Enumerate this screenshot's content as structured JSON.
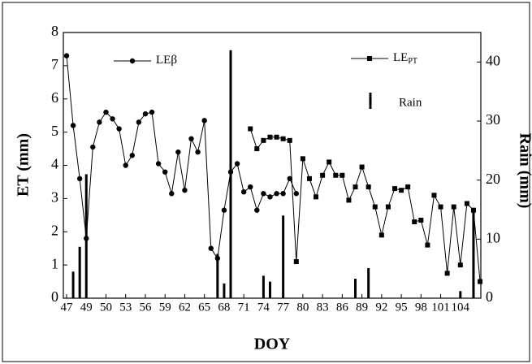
{
  "chart_data": {
    "type": "line",
    "xlabel": "DOY",
    "ylabel": "ET (mm)",
    "y2label": "Rain (mm)",
    "categories": [
      "47",
      null,
      null,
      "49",
      null,
      null,
      "50",
      null,
      null,
      "53",
      null,
      null,
      "56",
      null,
      null,
      "59",
      null,
      null,
      "62",
      null,
      null,
      "65",
      null,
      null,
      "68",
      null,
      null,
      "71",
      null,
      null,
      "74",
      null,
      null,
      "77",
      null,
      null,
      "80",
      null,
      null,
      "83",
      null,
      null,
      "86",
      null,
      null,
      "89",
      null,
      null,
      "92",
      null,
      null,
      "95",
      null,
      null,
      "98",
      null,
      null,
      "101",
      null,
      null,
      "104",
      null,
      null,
      null
    ],
    "series": [
      {
        "name": "LEβ",
        "marker": "circle",
        "color": "#000",
        "values": [
          7.3,
          5.2,
          3.6,
          1.8,
          4.55,
          5.3,
          5.6,
          5.4,
          5.1,
          4.0,
          4.3,
          5.3,
          5.55,
          5.6,
          4.05,
          3.8,
          3.15,
          4.4,
          3.25,
          4.8,
          4.4,
          5.35,
          1.5,
          1.2,
          2.65,
          3.8,
          4.05,
          3.2,
          3.35,
          2.65,
          3.15,
          3.05,
          3.15,
          3.15,
          3.6,
          3.15,
          null,
          null,
          null,
          null,
          null,
          null,
          null,
          null,
          null,
          null,
          null,
          null,
          null,
          null,
          null,
          null,
          null,
          null,
          null,
          null,
          null,
          null,
          null,
          null,
          null,
          null,
          null,
          null
        ]
      },
      {
        "name": "LE",
        "name_sub": "PT",
        "marker": "square",
        "color": "#000",
        "values": [
          null,
          null,
          null,
          null,
          null,
          null,
          null,
          null,
          null,
          null,
          null,
          null,
          null,
          null,
          null,
          null,
          null,
          null,
          null,
          null,
          null,
          null,
          null,
          null,
          null,
          null,
          null,
          null,
          5.1,
          4.5,
          4.75,
          4.85,
          4.85,
          4.8,
          4.75,
          1.1,
          4.2,
          3.6,
          3.05,
          3.7,
          4.1,
          3.7,
          3.7,
          2.95,
          3.35,
          3.95,
          3.35,
          2.75,
          1.9,
          2.75,
          3.3,
          3.25,
          3.35,
          2.3,
          2.35,
          1.6,
          3.1,
          2.75,
          0.75,
          2.75,
          1.0,
          2.85,
          2.65,
          0.5
        ]
      },
      {
        "name": "Rain",
        "marker": "bar",
        "axis": "y2",
        "color": "#000",
        "values": [
          null,
          4.5,
          8.7,
          21,
          null,
          null,
          null,
          null,
          null,
          null,
          null,
          null,
          null,
          null,
          null,
          null,
          null,
          null,
          null,
          null,
          null,
          null,
          null,
          7.5,
          2.5,
          42,
          null,
          null,
          null,
          null,
          3.8,
          2.8,
          null,
          14,
          null,
          null,
          null,
          null,
          null,
          null,
          null,
          null,
          null,
          null,
          3.3,
          null,
          5.1,
          null,
          null,
          null,
          null,
          null,
          null,
          null,
          null,
          null,
          null,
          null,
          null,
          null,
          1.2,
          null,
          15,
          null
        ]
      }
    ],
    "ylim": [
      0,
      8
    ],
    "yticks": [
      0,
      1,
      2,
      3,
      4,
      5,
      6,
      7,
      8
    ],
    "y2lim": [
      0,
      45
    ],
    "y2ticks": [
      0,
      10,
      20,
      30,
      40
    ]
  }
}
